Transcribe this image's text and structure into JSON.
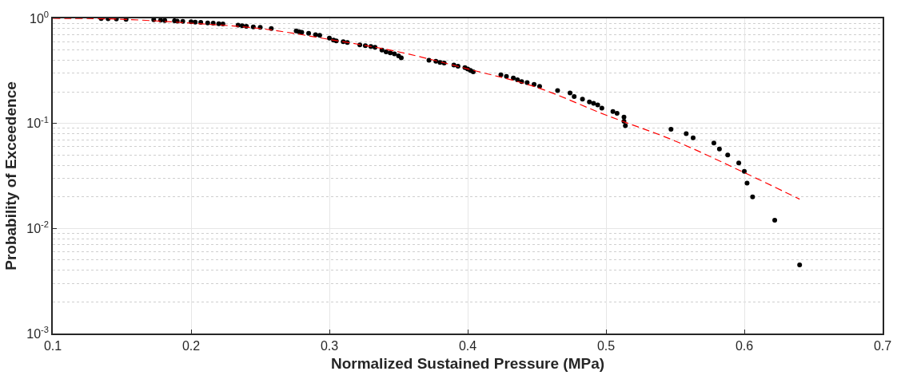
{
  "chart_data": {
    "type": "scatter",
    "xlabel": "Normalized Sustained Pressure (MPa)",
    "ylabel": "Probability of Exceedence",
    "log": "y",
    "grid": true,
    "marker": "circle",
    "xlim": [
      0.1,
      0.7
    ],
    "xticks": [
      0.1,
      0.2,
      0.3,
      0.4,
      0.5,
      0.6,
      0.7
    ],
    "ylim": [
      0.001,
      1
    ],
    "yticks": [
      {
        "value": 0.001,
        "label": "10$^{-3}$"
      },
      {
        "value": 0.01,
        "label": "10$^{-2}$"
      },
      {
        "value": 0.1,
        "label": "10$^{-1}$"
      },
      {
        "value": 1,
        "label": "10$^{0}$"
      }
    ],
    "series": [
      {
        "color": "#000000",
        "x": [
          0.135,
          0.14,
          0.146,
          0.153,
          0.173,
          0.178,
          0.181,
          0.188,
          0.19,
          0.194,
          0.2,
          0.203,
          0.207,
          0.212,
          0.216,
          0.22,
          0.223,
          0.234,
          0.237,
          0.24,
          0.245,
          0.25,
          0.258,
          0.276,
          0.278,
          0.28,
          0.285,
          0.29,
          0.293,
          0.3,
          0.303,
          0.305,
          0.31,
          0.313,
          0.322,
          0.326,
          0.33,
          0.333,
          0.338,
          0.341,
          0.344,
          0.347,
          0.35,
          0.352,
          0.372,
          0.377,
          0.38,
          0.383,
          0.39,
          0.393,
          0.398,
          0.4,
          0.402,
          0.404,
          0.424,
          0.428,
          0.433,
          0.436,
          0.439,
          0.443,
          0.448,
          0.452,
          0.465,
          0.474,
          0.477,
          0.483,
          0.488,
          0.491,
          0.494,
          0.497,
          0.505,
          0.508,
          0.513,
          0.513,
          0.514,
          0.547,
          0.558,
          0.563,
          0.578,
          0.582,
          0.588,
          0.596,
          0.6,
          0.602,
          0.606,
          0.622,
          0.64
        ],
        "values": [
          0.995,
          0.99,
          0.985,
          0.98,
          0.97,
          0.96,
          0.955,
          0.95,
          0.94,
          0.935,
          0.93,
          0.92,
          0.915,
          0.905,
          0.9,
          0.89,
          0.885,
          0.86,
          0.85,
          0.84,
          0.83,
          0.82,
          0.8,
          0.76,
          0.745,
          0.735,
          0.72,
          0.7,
          0.69,
          0.65,
          0.62,
          0.61,
          0.6,
          0.59,
          0.56,
          0.55,
          0.54,
          0.53,
          0.5,
          0.48,
          0.47,
          0.46,
          0.44,
          0.42,
          0.4,
          0.39,
          0.38,
          0.375,
          0.36,
          0.35,
          0.34,
          0.33,
          0.32,
          0.31,
          0.29,
          0.28,
          0.27,
          0.26,
          0.25,
          0.245,
          0.235,
          0.225,
          0.205,
          0.195,
          0.18,
          0.17,
          0.16,
          0.155,
          0.15,
          0.14,
          0.13,
          0.125,
          0.115,
          0.105,
          0.095,
          0.088,
          0.08,
          0.073,
          0.065,
          0.057,
          0.05,
          0.042,
          0.035,
          0.027,
          0.02,
          0.012,
          0.0045
        ]
      },
      {
        "type": "line",
        "color": "#ff0000",
        "line_style": "dashed",
        "marker": "none",
        "x": [
          0.1,
          0.15,
          0.2,
          0.25,
          0.3,
          0.35,
          0.4,
          0.45,
          0.5,
          0.55,
          0.6,
          0.64
        ],
        "values": [
          1.0,
          0.98,
          0.9,
          0.8,
          0.63,
          0.48,
          0.33,
          0.22,
          0.12,
          0.068,
          0.034,
          0.019
        ]
      }
    ]
  }
}
